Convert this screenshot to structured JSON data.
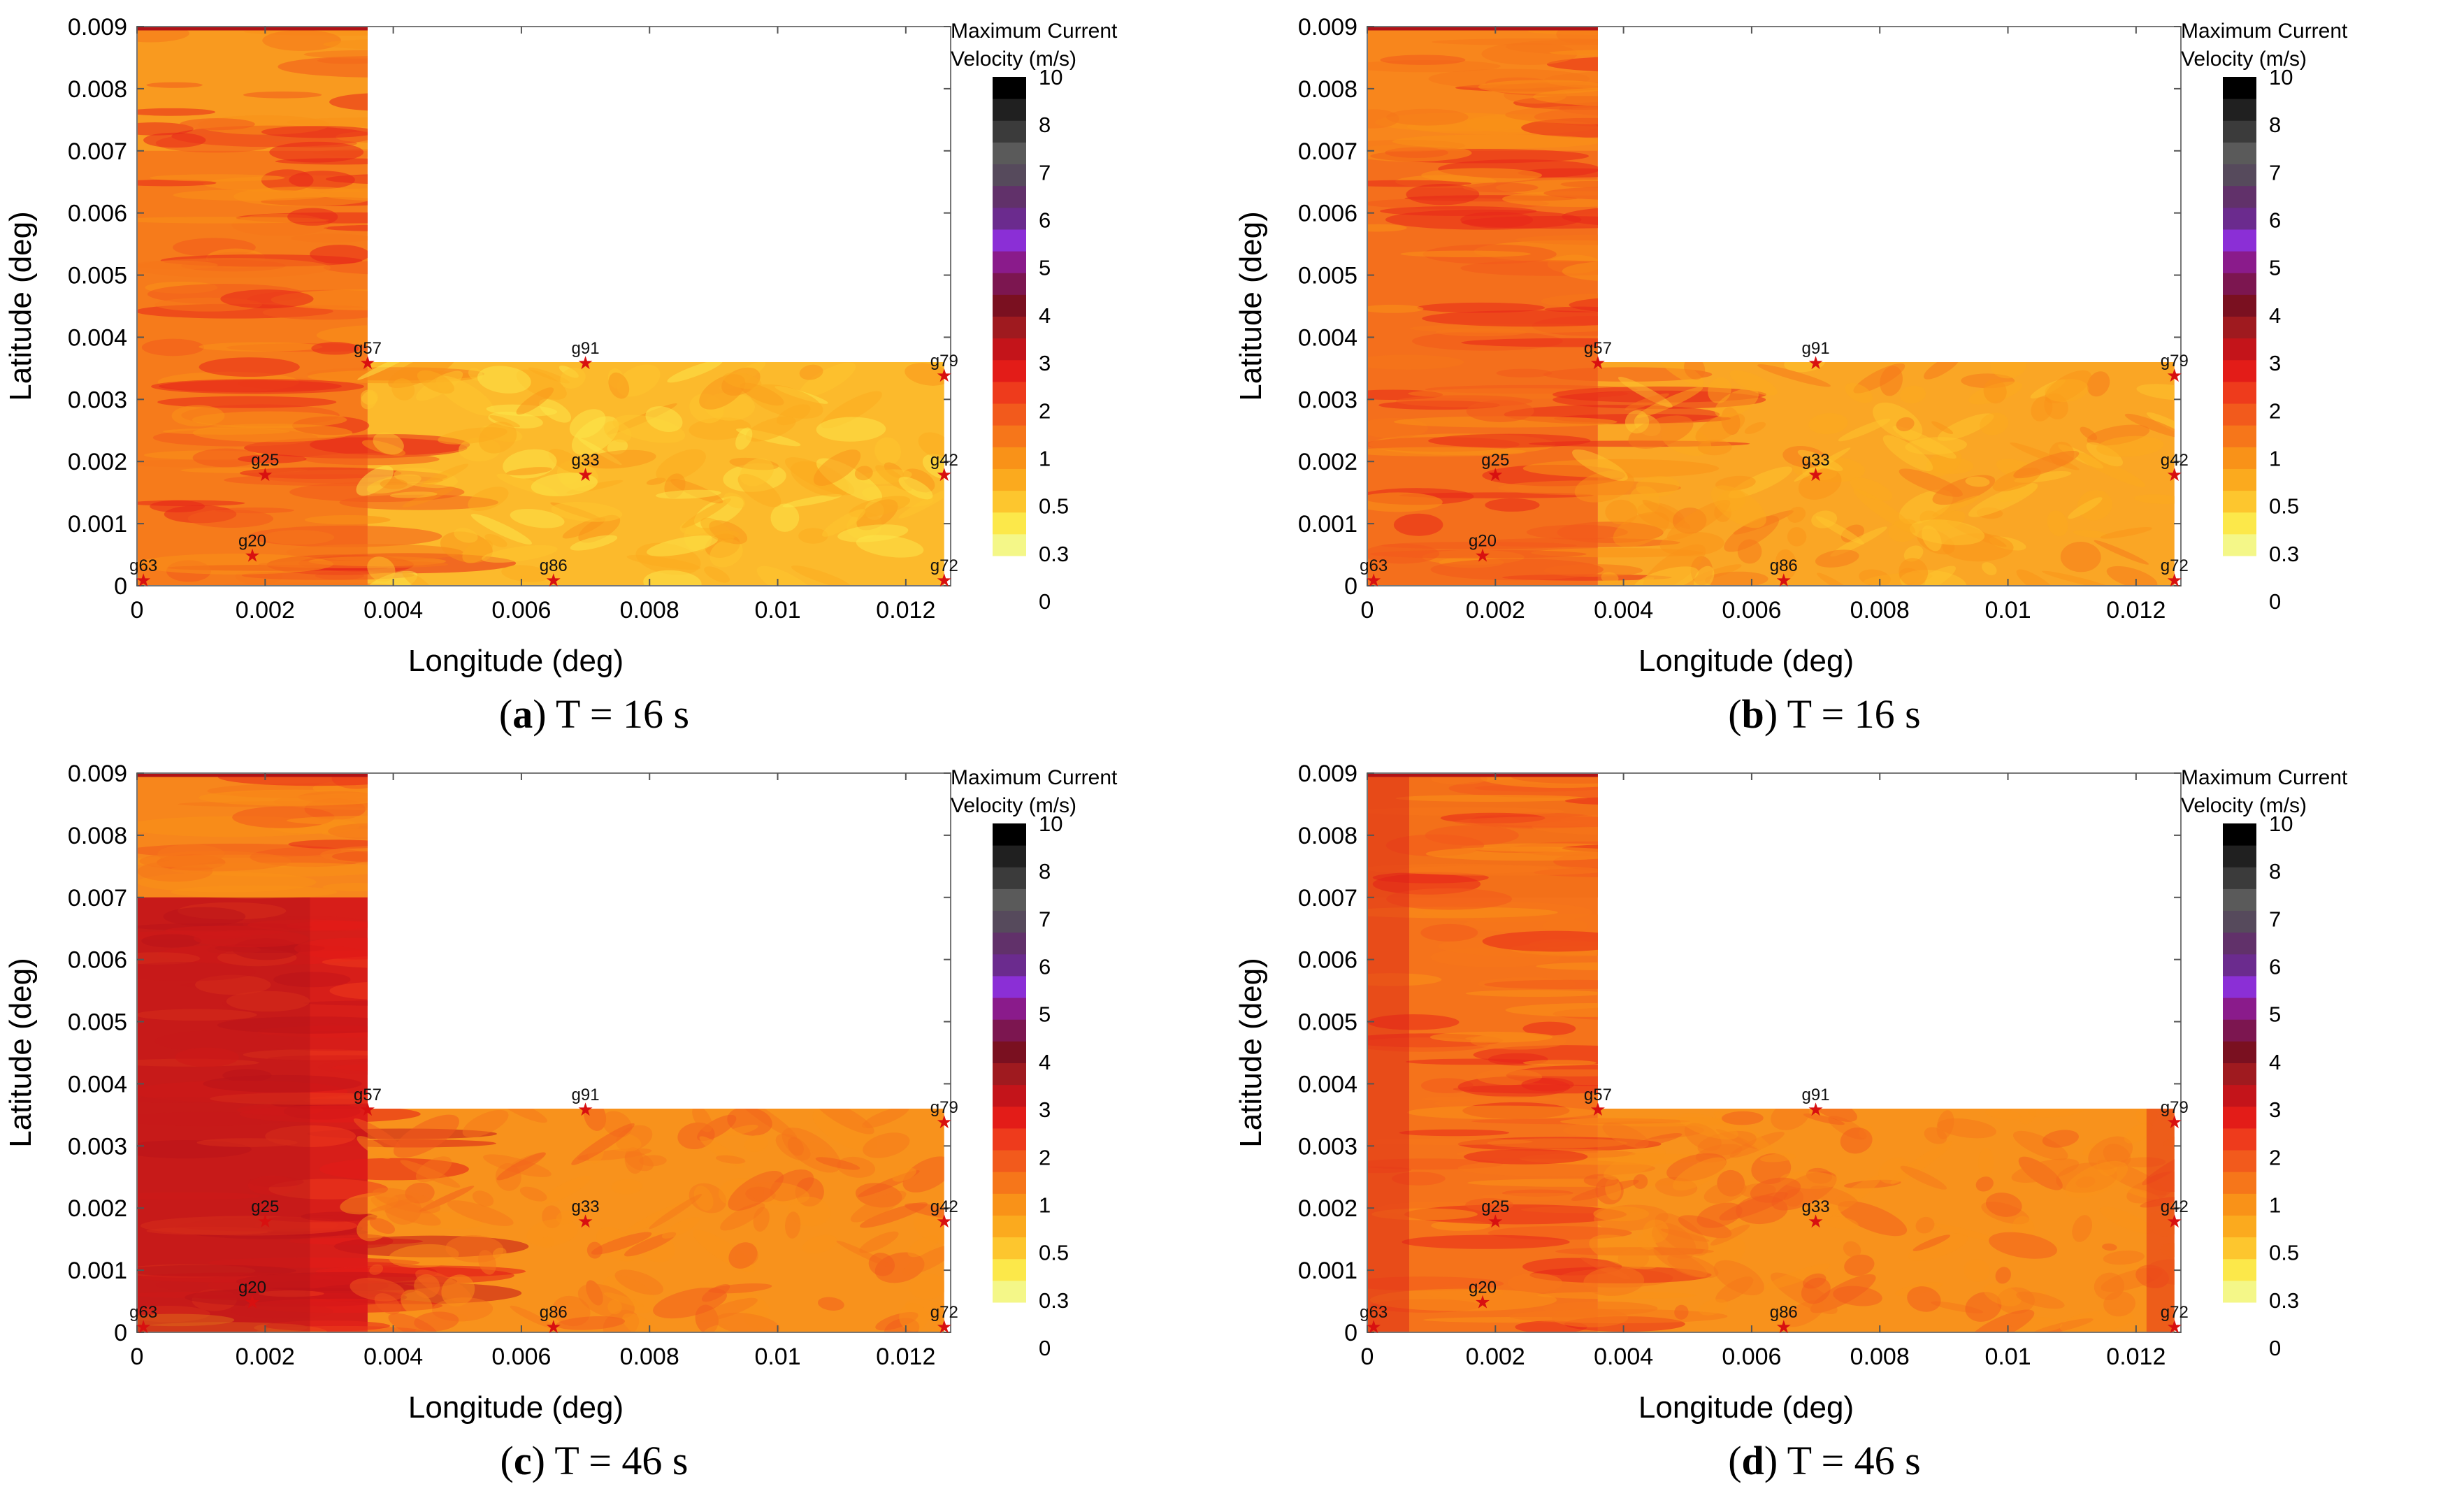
{
  "chart_data": [
    {
      "type": "heatmap",
      "panel_label": "a",
      "caption": "T = 16 s",
      "xlabel": "Longitude (deg)",
      "ylabel": "Latitude (deg)",
      "xlim": [
        0,
        0.0127
      ],
      "ylim": [
        0,
        0.009
      ],
      "x_ticks": [
        "0",
        "0.002",
        "0.004",
        "0.006",
        "0.008",
        "0.01",
        "0.012"
      ],
      "x_tick_values": [
        0,
        0.002,
        0.004,
        0.006,
        0.008,
        0.01,
        0.012
      ],
      "y_ticks": [
        "0",
        "0.001",
        "0.002",
        "0.003",
        "0.004",
        "0.005",
        "0.006",
        "0.007",
        "0.008",
        "0.009"
      ],
      "y_tick_values": [
        0,
        0.001,
        0.002,
        0.003,
        0.004,
        0.005,
        0.006,
        0.007,
        0.008,
        0.009
      ],
      "domain_shape": {
        "vertical_arm_x": [
          0,
          0.0036
        ],
        "vertical_arm_y": [
          0,
          0.009
        ],
        "horizontal_arm_x": [
          0,
          0.0126
        ],
        "horizontal_arm_y": [
          0,
          0.0036
        ]
      },
      "gauges": [
        {
          "name": "g57",
          "x": 0.0036,
          "y": 0.0036
        },
        {
          "name": "g91",
          "x": 0.007,
          "y": 0.0036
        },
        {
          "name": "g79",
          "x": 0.0126,
          "y": 0.0034
        },
        {
          "name": "g25",
          "x": 0.002,
          "y": 0.0018
        },
        {
          "name": "g33",
          "x": 0.007,
          "y": 0.0018
        },
        {
          "name": "g42",
          "x": 0.0126,
          "y": 0.0018
        },
        {
          "name": "g63",
          "x": 0.0001,
          "y": 0.0001
        },
        {
          "name": "g20",
          "x": 0.0018,
          "y": 0.0005
        },
        {
          "name": "g86",
          "x": 0.0065,
          "y": 0.0001
        },
        {
          "name": "g72",
          "x": 0.0126,
          "y": 0.0001
        }
      ],
      "colorbar": {
        "title_lines": [
          "Maximum Current",
          "Velocity (m/s)"
        ],
        "levels": [
          "0",
          "0.3",
          "0.5",
          "1",
          "2",
          "3",
          "4",
          "5",
          "6",
          "7",
          "8",
          "10"
        ],
        "colors": [
          "#f4f788",
          "#fce84a",
          "#fdc62e",
          "#fbaa1e",
          "#f99218",
          "#f6761a",
          "#f25a1c",
          "#ee3b1c",
          "#e31c18",
          "#c4141a",
          "#9f1a1f",
          "#7a1020",
          "#7c1650",
          "#8a1b8b",
          "#8b2fd6",
          "#6b2b8e",
          "#61316a",
          "#564a5c",
          "#5a5a5a",
          "#3b3b3b",
          "#202020",
          "#000000"
        ]
      },
      "field": {
        "vertical_arm_base": "#f67b1b",
        "vertical_arm_top": "#f99a1f",
        "horizontal_arm_base": "#fcba2c",
        "intensity": 2
      }
    },
    {
      "type": "heatmap",
      "panel_label": "b",
      "caption": "T = 16 s",
      "xlabel": "Longitude (deg)",
      "ylabel": "Latitude (deg)",
      "xlim": [
        0,
        0.0127
      ],
      "ylim": [
        0,
        0.009
      ],
      "x_ticks": [
        "0",
        "0.002",
        "0.004",
        "0.006",
        "0.008",
        "0.01",
        "0.012"
      ],
      "x_tick_values": [
        0,
        0.002,
        0.004,
        0.006,
        0.008,
        0.01,
        0.012
      ],
      "y_ticks": [
        "0",
        "0.001",
        "0.002",
        "0.003",
        "0.004",
        "0.005",
        "0.006",
        "0.007",
        "0.008",
        "0.009"
      ],
      "y_tick_values": [
        0,
        0.001,
        0.002,
        0.003,
        0.004,
        0.005,
        0.006,
        0.007,
        0.008,
        0.009
      ],
      "domain_shape": {
        "vertical_arm_x": [
          0,
          0.0036
        ],
        "vertical_arm_y": [
          0,
          0.009
        ],
        "horizontal_arm_x": [
          0,
          0.0126
        ],
        "horizontal_arm_y": [
          0,
          0.0036
        ]
      },
      "gauges": [
        {
          "name": "g57",
          "x": 0.0036,
          "y": 0.0036
        },
        {
          "name": "g91",
          "x": 0.007,
          "y": 0.0036
        },
        {
          "name": "g79",
          "x": 0.0126,
          "y": 0.0034
        },
        {
          "name": "g25",
          "x": 0.002,
          "y": 0.0018
        },
        {
          "name": "g33",
          "x": 0.007,
          "y": 0.0018
        },
        {
          "name": "g42",
          "x": 0.0126,
          "y": 0.0018
        },
        {
          "name": "g63",
          "x": 0.0001,
          "y": 0.0001
        },
        {
          "name": "g20",
          "x": 0.0018,
          "y": 0.0005
        },
        {
          "name": "g86",
          "x": 0.0065,
          "y": 0.0001
        },
        {
          "name": "g72",
          "x": 0.0126,
          "y": 0.0001
        }
      ],
      "colorbar": {
        "title_lines": [
          "Maximum Current",
          "Velocity (m/s)"
        ],
        "levels": [
          "0",
          "0.3",
          "0.5",
          "1",
          "2",
          "3",
          "4",
          "5",
          "6",
          "7",
          "8",
          "10"
        ],
        "colors": [
          "#f4f788",
          "#fce84a",
          "#fdc62e",
          "#fbaa1e",
          "#f99218",
          "#f6761a",
          "#f25a1c",
          "#ee3b1c",
          "#e31c18",
          "#c4141a",
          "#9f1a1f",
          "#7a1020",
          "#7c1650",
          "#8a1b8b",
          "#8b2fd6",
          "#6b2b8e",
          "#61316a",
          "#564a5c",
          "#5a5a5a",
          "#3b3b3b",
          "#202020",
          "#000000"
        ]
      },
      "field": {
        "vertical_arm_base": "#f46f1c",
        "vertical_arm_top": "#f8861c",
        "horizontal_arm_base": "#faa625",
        "intensity": 2
      }
    },
    {
      "type": "heatmap",
      "panel_label": "c",
      "caption": "T = 46 s",
      "xlabel": "Longitude (deg)",
      "ylabel": "Latitude (deg)",
      "xlim": [
        0,
        0.0127
      ],
      "ylim": [
        0,
        0.009
      ],
      "x_ticks": [
        "0",
        "0.002",
        "0.004",
        "0.006",
        "0.008",
        "0.01",
        "0.012"
      ],
      "x_tick_values": [
        0,
        0.002,
        0.004,
        0.006,
        0.008,
        0.01,
        0.012
      ],
      "y_ticks": [
        "0",
        "0.001",
        "0.002",
        "0.003",
        "0.004",
        "0.005",
        "0.006",
        "0.007",
        "0.008",
        "0.009"
      ],
      "y_tick_values": [
        0,
        0.001,
        0.002,
        0.003,
        0.004,
        0.005,
        0.006,
        0.007,
        0.008,
        0.009
      ],
      "domain_shape": {
        "vertical_arm_x": [
          0,
          0.0036
        ],
        "vertical_arm_y": [
          0,
          0.009
        ],
        "horizontal_arm_x": [
          0,
          0.0126
        ],
        "horizontal_arm_y": [
          0,
          0.0036
        ]
      },
      "gauges": [
        {
          "name": "g57",
          "x": 0.0036,
          "y": 0.0036
        },
        {
          "name": "g91",
          "x": 0.007,
          "y": 0.0036
        },
        {
          "name": "g79",
          "x": 0.0126,
          "y": 0.0034
        },
        {
          "name": "g25",
          "x": 0.002,
          "y": 0.0018
        },
        {
          "name": "g33",
          "x": 0.007,
          "y": 0.0018
        },
        {
          "name": "g42",
          "x": 0.0126,
          "y": 0.0018
        },
        {
          "name": "g63",
          "x": 0.0001,
          "y": 0.0001
        },
        {
          "name": "g20",
          "x": 0.0018,
          "y": 0.0005
        },
        {
          "name": "g86",
          "x": 0.0065,
          "y": 0.0001
        },
        {
          "name": "g72",
          "x": 0.0126,
          "y": 0.0001
        }
      ],
      "colorbar": {
        "title_lines": [
          "Maximum Current",
          "Velocity (m/s)"
        ],
        "levels": [
          "0",
          "0.3",
          "0.5",
          "1",
          "2",
          "3",
          "4",
          "5",
          "6",
          "7",
          "8",
          "10"
        ],
        "colors": [
          "#f4f788",
          "#fce84a",
          "#fdc62e",
          "#fbaa1e",
          "#f99218",
          "#f6761a",
          "#f25a1c",
          "#ee3b1c",
          "#e31c18",
          "#c4141a",
          "#9f1a1f",
          "#7a1020",
          "#7c1650",
          "#8a1b8b",
          "#8b2fd6",
          "#6b2b8e",
          "#61316a",
          "#564a5c",
          "#5a5a5a",
          "#3b3b3b",
          "#202020",
          "#000000"
        ]
      },
      "field": {
        "vertical_arm_base": "#d71e19",
        "vertical_arm_top": "#f7861c",
        "horizontal_arm_base": "#f8921c",
        "intensity": 3
      }
    },
    {
      "type": "heatmap",
      "panel_label": "d",
      "caption": "T = 46 s",
      "xlabel": "Longitude (deg)",
      "ylabel": "Latitude (deg)",
      "xlim": [
        0,
        0.0127
      ],
      "ylim": [
        0,
        0.009
      ],
      "x_ticks": [
        "0",
        "0.002",
        "0.004",
        "0.006",
        "0.008",
        "0.01",
        "0.012"
      ],
      "x_tick_values": [
        0,
        0.002,
        0.004,
        0.006,
        0.008,
        0.01,
        0.012
      ],
      "y_ticks": [
        "0",
        "0.001",
        "0.002",
        "0.003",
        "0.004",
        "0.005",
        "0.006",
        "0.007",
        "0.008",
        "0.009"
      ],
      "y_tick_values": [
        0,
        0.001,
        0.002,
        0.003,
        0.004,
        0.005,
        0.006,
        0.007,
        0.008,
        0.009
      ],
      "domain_shape": {
        "vertical_arm_x": [
          0,
          0.0036
        ],
        "vertical_arm_y": [
          0,
          0.009
        ],
        "horizontal_arm_x": [
          0,
          0.0126
        ],
        "horizontal_arm_y": [
          0,
          0.0036
        ]
      },
      "gauges": [
        {
          "name": "g57",
          "x": 0.0036,
          "y": 0.0036
        },
        {
          "name": "g91",
          "x": 0.007,
          "y": 0.0036
        },
        {
          "name": "g79",
          "x": 0.0126,
          "y": 0.0034
        },
        {
          "name": "g25",
          "x": 0.002,
          "y": 0.0018
        },
        {
          "name": "g33",
          "x": 0.007,
          "y": 0.0018
        },
        {
          "name": "g42",
          "x": 0.0126,
          "y": 0.0018
        },
        {
          "name": "g63",
          "x": 0.0001,
          "y": 0.0001
        },
        {
          "name": "g20",
          "x": 0.0018,
          "y": 0.0005
        },
        {
          "name": "g86",
          "x": 0.0065,
          "y": 0.0001
        },
        {
          "name": "g72",
          "x": 0.0126,
          "y": 0.0001
        }
      ],
      "colorbar": {
        "title_lines": [
          "Maximum Current",
          "Velocity (m/s)"
        ],
        "levels": [
          "0",
          "0.3",
          "0.5",
          "1",
          "2",
          "3",
          "4",
          "5",
          "6",
          "7",
          "8",
          "10"
        ],
        "colors": [
          "#f4f788",
          "#fce84a",
          "#fdc62e",
          "#fbaa1e",
          "#f99218",
          "#f6761a",
          "#f25a1c",
          "#ee3b1c",
          "#e31c18",
          "#c4141a",
          "#9f1a1f",
          "#7a1020",
          "#7c1650",
          "#8a1b8b",
          "#8b2fd6",
          "#6b2b8e",
          "#61316a",
          "#564a5c",
          "#5a5a5a",
          "#3b3b3b",
          "#202020",
          "#000000"
        ]
      },
      "field": {
        "vertical_arm_base": "#f5731b",
        "vertical_arm_top": "#f37019",
        "horizontal_arm_base": "#f8921c",
        "intensity": 2
      }
    }
  ]
}
